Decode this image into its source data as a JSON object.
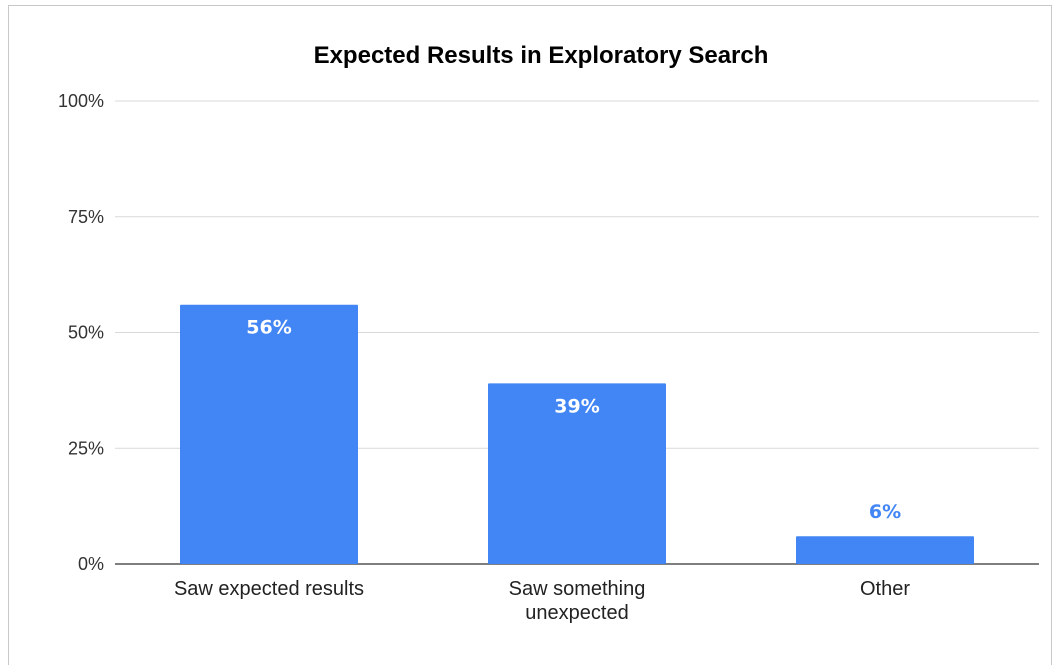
{
  "chart_data": {
    "type": "bar",
    "title": "Expected Results in Exploratory Search",
    "categories": [
      "Saw expected results",
      "Saw something unexpected",
      "Other"
    ],
    "category_lines": [
      [
        "Saw expected results"
      ],
      [
        "Saw something",
        "unexpected"
      ],
      [
        "Other"
      ]
    ],
    "values": [
      56,
      39,
      6
    ],
    "value_labels": [
      "56%",
      "39%",
      "6%"
    ],
    "yticks": [
      "0%",
      "25%",
      "50%",
      "75%",
      "100%"
    ],
    "ylim": [
      0,
      100
    ],
    "xlabel": "",
    "ylabel": "",
    "grid": true,
    "legend": "none",
    "colors": {
      "bar": "#4285f4",
      "inner_label": "#ffffff",
      "outer_label": "#4285f4",
      "grid": "#d9d9d9",
      "axis": "#333333"
    }
  }
}
